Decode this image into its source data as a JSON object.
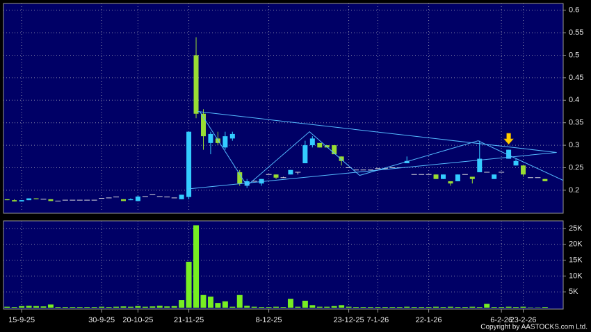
{
  "chart_data": [
    {
      "type": "candlestick",
      "open": [
        0.18,
        0.178,
        0.175,
        0.178,
        0.182,
        0.18,
        0.18,
        0.176,
        0.178,
        0.178,
        0.178,
        0.178,
        0.178,
        0.182,
        0.183,
        0.185,
        0.18,
        0.178,
        0.176,
        0.186,
        0.19,
        0.186,
        0.185,
        0.183,
        0.18,
        0.185,
        0.5,
        0.37,
        0.305,
        0.315,
        0.295,
        0.315,
        0.24,
        0.21,
        0.22,
        0.215,
        0.235,
        0.235,
        0.228,
        0.235,
        0.24,
        0.26,
        0.3,
        0.305,
        0.3,
        0.3,
        0.275,
        0.25,
        0.245,
        0.245,
        0.245,
        0.248,
        0.248,
        0.25,
        0.25,
        0.26,
        0.235,
        0.235,
        0.235,
        0.235,
        0.225,
        0.22,
        0.22,
        0.235,
        0.23,
        0.24,
        0.24,
        0.225,
        0.24,
        0.27,
        0.255,
        0.255,
        0.228,
        0.228,
        0.225,
        null,
        null
      ],
      "high": [
        0.18,
        0.18,
        0.178,
        0.182,
        0.182,
        0.18,
        0.18,
        0.176,
        0.178,
        0.178,
        0.178,
        0.178,
        0.178,
        0.182,
        0.183,
        0.185,
        0.18,
        0.182,
        0.188,
        0.186,
        0.19,
        0.186,
        0.185,
        0.183,
        0.19,
        0.33,
        0.54,
        0.38,
        0.33,
        0.33,
        0.33,
        0.33,
        0.245,
        0.225,
        0.22,
        0.225,
        0.235,
        0.235,
        0.23,
        0.245,
        0.24,
        0.31,
        0.32,
        0.305,
        0.3,
        0.3,
        0.275,
        0.25,
        0.245,
        0.245,
        0.245,
        0.248,
        0.248,
        0.25,
        0.25,
        0.275,
        0.235,
        0.235,
        0.235,
        0.235,
        0.235,
        0.22,
        0.235,
        0.235,
        0.23,
        0.31,
        0.24,
        0.235,
        0.24,
        0.29,
        0.27,
        0.255,
        0.228,
        0.228,
        0.225,
        null,
        null
      ],
      "low": [
        0.178,
        0.175,
        0.175,
        0.178,
        0.18,
        0.18,
        0.176,
        0.176,
        0.178,
        0.178,
        0.178,
        0.178,
        0.178,
        0.182,
        0.183,
        0.185,
        0.176,
        0.178,
        0.176,
        0.186,
        0.19,
        0.186,
        0.185,
        0.183,
        0.18,
        0.18,
        0.36,
        0.29,
        0.28,
        0.3,
        0.29,
        0.31,
        0.21,
        0.205,
        0.22,
        0.21,
        0.235,
        0.225,
        0.228,
        0.235,
        0.235,
        0.26,
        0.295,
        0.295,
        0.295,
        0.28,
        0.255,
        0.25,
        0.245,
        0.245,
        0.245,
        0.248,
        0.248,
        0.25,
        0.25,
        0.26,
        0.235,
        0.235,
        0.235,
        0.225,
        0.225,
        0.21,
        0.22,
        0.235,
        0.215,
        0.24,
        0.24,
        0.225,
        0.24,
        0.27,
        0.255,
        0.23,
        0.228,
        0.228,
        0.22,
        null,
        null
      ],
      "close": [
        0.178,
        0.175,
        0.178,
        0.182,
        0.18,
        0.18,
        0.176,
        0.176,
        0.178,
        0.178,
        0.178,
        0.178,
        0.178,
        0.182,
        0.183,
        0.185,
        0.176,
        0.18,
        0.186,
        0.186,
        0.19,
        0.186,
        0.185,
        0.183,
        0.19,
        0.33,
        0.37,
        0.32,
        0.325,
        0.305,
        0.32,
        0.325,
        0.215,
        0.22,
        0.22,
        0.225,
        0.235,
        0.228,
        0.228,
        0.245,
        0.24,
        0.3,
        0.315,
        0.295,
        0.295,
        0.28,
        0.265,
        0.25,
        0.245,
        0.245,
        0.245,
        0.248,
        0.248,
        0.25,
        0.25,
        0.265,
        0.235,
        0.235,
        0.235,
        0.225,
        0.235,
        0.215,
        0.235,
        0.235,
        0.225,
        0.27,
        0.24,
        0.235,
        0.24,
        0.29,
        0.265,
        0.235,
        0.228,
        0.228,
        0.22,
        null,
        null
      ],
      "up_color": "#33ccff",
      "down_color": "#99dd33",
      "flat_color": "#dddddd",
      "ylim": [
        0.152,
        0.615
      ],
      "yticks": [
        0.2,
        0.25,
        0.3,
        0.35,
        0.4,
        0.45,
        0.5,
        0.55,
        0.6
      ],
      "grid": true,
      "trendlines": [
        {
          "color": "#55bbff",
          "points": [
            [
              26.2,
              0.375
            ],
            [
              75.6,
              0.284
            ]
          ]
        },
        {
          "color": "#55bbff",
          "points": [
            [
              24.9,
              0.203
            ],
            [
              75.6,
              0.284
            ]
          ]
        },
        {
          "color": "#55bbff",
          "points": [
            [
              26.5,
              0.375
            ],
            [
              33,
              0.21
            ],
            [
              41.6,
              0.33
            ],
            [
              48.5,
              0.233
            ],
            [
              64.8,
              0.31
            ],
            [
              69.8,
              0.272
            ],
            [
              76.5,
              0.222
            ]
          ]
        }
      ],
      "marker": {
        "index": 69,
        "value": 0.305,
        "color": "#ffcc00"
      }
    },
    {
      "type": "bar",
      "categories": [
        null,
        null,
        "15-9-25",
        null,
        null,
        null,
        null,
        null,
        null,
        null,
        null,
        null,
        null,
        "30-9-25",
        null,
        null,
        null,
        null,
        "20-10-25",
        null,
        null,
        null,
        null,
        null,
        null,
        "21-11-25",
        null,
        null,
        null,
        null,
        null,
        null,
        null,
        null,
        null,
        null,
        "8-12-25",
        null,
        null,
        null,
        null,
        null,
        null,
        null,
        null,
        null,
        null,
        "23-12-25",
        null,
        null,
        null,
        "7-1-26",
        null,
        null,
        null,
        null,
        null,
        null,
        "22-1-26",
        null,
        null,
        null,
        null,
        null,
        null,
        null,
        null,
        null,
        "6-2-26",
        null,
        null,
        "23-2-26",
        null,
        null,
        null,
        null,
        null
      ],
      "values": [
        300,
        200,
        500,
        600,
        500,
        400,
        1000,
        200,
        200,
        200,
        200,
        200,
        200,
        300,
        200,
        300,
        400,
        300,
        500,
        300,
        400,
        600,
        400,
        500,
        2400,
        14500,
        26000,
        4000,
        3500,
        1500,
        2000,
        300,
        4000,
        600,
        300,
        200,
        200,
        300,
        200,
        2800,
        300,
        2200,
        800,
        300,
        300,
        500,
        800,
        300,
        200,
        200,
        200,
        200,
        200,
        200,
        200,
        300,
        200,
        200,
        200,
        300,
        200,
        300,
        200,
        200,
        300,
        200,
        1200,
        200,
        200,
        300,
        200,
        300,
        100,
        100,
        200,
        null,
        null
      ],
      "color": "#77ee22",
      "ylim": [
        0,
        27400
      ],
      "yticks": [
        {
          "value": 5000,
          "label": "5K"
        },
        {
          "value": 10000,
          "label": "10K"
        },
        {
          "value": 15000,
          "label": "15K"
        },
        {
          "value": 20000,
          "label": "20K"
        },
        {
          "value": 25000,
          "label": "25K"
        }
      ],
      "grid": true,
      "copyright": "Copyright by AASTOCKS.com Ltd."
    }
  ]
}
